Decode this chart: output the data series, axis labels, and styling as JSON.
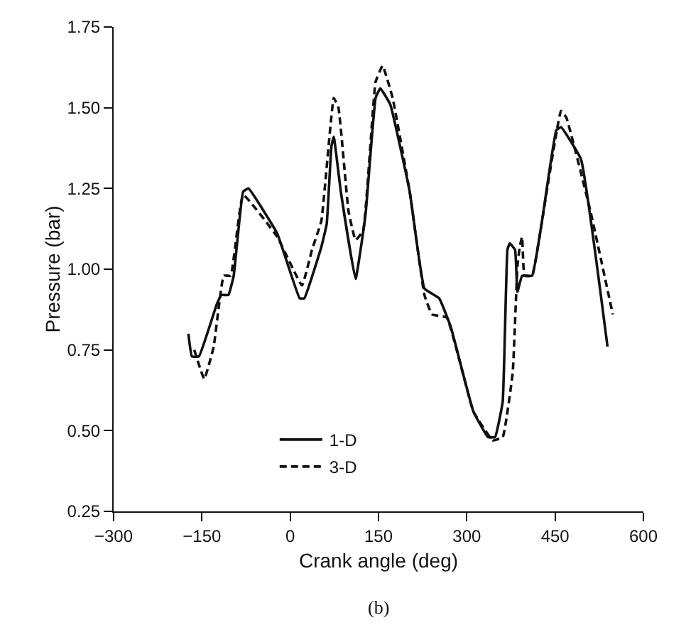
{
  "chart_data": {
    "type": "line",
    "xlabel": "Crank angle (deg)",
    "ylabel": "Pressure (bar)",
    "annotations": [
      "(b)"
    ],
    "xlim": [
      -300,
      600
    ],
    "xticks": [
      {
        "value": -300,
        "label": "−300"
      },
      {
        "value": -150,
        "label": "−150"
      },
      0,
      150,
      300,
      450,
      600
    ],
    "ylim": [
      0.25,
      1.75
    ],
    "yticks": [
      {
        "value": 0.25,
        "label": "0.25"
      },
      {
        "value": 0.5,
        "label": "0.50"
      },
      {
        "value": 0.75,
        "label": "0.75"
      },
      {
        "value": 1,
        "label": "1.00"
      },
      {
        "value": 1.25,
        "label": "1.25"
      },
      {
        "value": 1.5,
        "label": "1.50"
      },
      {
        "value": 1.75,
        "label": "1.75"
      }
    ],
    "grid": false,
    "legend": "bottom",
    "marker": "none",
    "series": [
      {
        "name": "1-D",
        "color": "#111111",
        "line_style": "solid",
        "x": [
          -173,
          -167,
          -155,
          -125,
          -117,
          -105,
          -96,
          -80,
          -71,
          -22,
          16,
          24,
          53,
          62,
          70,
          74,
          86,
          111,
          128,
          145,
          153,
          170,
          203,
          228,
          253,
          273,
          311,
          336,
          348,
          361,
          369,
          373,
          382,
          386,
          394,
          411,
          427,
          452,
          460,
          494,
          539
        ],
        "values": [
          0.8,
          0.73,
          0.73,
          0.89,
          0.92,
          0.92,
          0.98,
          1.24,
          1.25,
          1.11,
          0.91,
          0.91,
          1.07,
          1.14,
          1.38,
          1.41,
          1.24,
          0.97,
          1.17,
          1.53,
          1.56,
          1.51,
          1.24,
          0.94,
          0.91,
          0.82,
          0.56,
          0.48,
          0.48,
          0.59,
          1.06,
          1.08,
          1.06,
          0.93,
          0.98,
          0.98,
          1.14,
          1.43,
          1.44,
          1.34,
          0.76
        ]
      },
      {
        "name": "3-D",
        "color": "#111111",
        "line_style": "dashed",
        "x": [
          -163,
          -146,
          -130,
          -113,
          -101,
          -80,
          -22,
          20,
          37,
          53,
          74,
          82,
          99,
          111,
          124,
          145,
          157,
          174,
          203,
          228,
          241,
          266,
          311,
          344,
          361,
          378,
          386,
          390,
          394,
          398,
          411,
          427,
          460,
          469,
          510,
          548
        ],
        "values": [
          0.75,
          0.66,
          0.76,
          0.98,
          0.98,
          1.23,
          1.1,
          0.95,
          1.06,
          1.15,
          1.53,
          1.5,
          1.18,
          1.09,
          1.12,
          1.58,
          1.63,
          1.53,
          1.24,
          0.92,
          0.86,
          0.85,
          0.56,
          0.47,
          0.48,
          0.68,
          1.01,
          1.07,
          1.1,
          0.98,
          0.98,
          1.14,
          1.49,
          1.47,
          1.18,
          0.86
        ]
      }
    ]
  }
}
